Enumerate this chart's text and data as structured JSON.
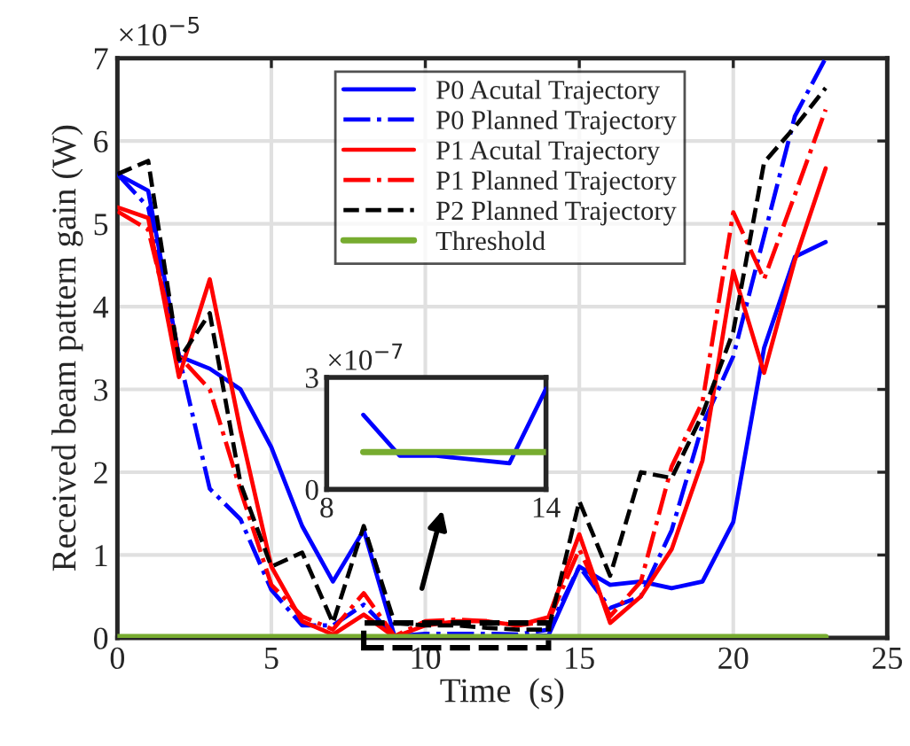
{
  "chart_data": [
    {
      "type": "line",
      "xlabel": "Time  (s)",
      "ylabel": "Received beam pattern gain (W)",
      "x": [
        0,
        1,
        2,
        3,
        4,
        5,
        6,
        7,
        8,
        9,
        10,
        11,
        12,
        13,
        14,
        15,
        16,
        17,
        18,
        19,
        20,
        21,
        22,
        23
      ],
      "series": [
        {
          "name": "P0 Acutal Trajectory",
          "color": "#0000ff",
          "line_style": "solid",
          "values": [
            5.6,
            5.4,
            3.4,
            3.25,
            3.0,
            2.3,
            1.35,
            0.68,
            1.3,
            0.02,
            0.01,
            0.01,
            0.01,
            0.01,
            0.03,
            0.86,
            0.64,
            0.68,
            0.6,
            0.68,
            1.4,
            3.5,
            4.6,
            4.78
          ]
        },
        {
          "name": "P0 Planned Trajectory",
          "color": "#0000ff",
          "line_style": "dashdot",
          "values": [
            5.6,
            5.2,
            3.4,
            1.8,
            1.43,
            0.58,
            0.15,
            0.15,
            0.4,
            0.02,
            0.05,
            0.05,
            0.05,
            0.04,
            0.1,
            0.86,
            0.36,
            0.5,
            1.3,
            2.57,
            3.4,
            4.85,
            6.3,
            7.0
          ]
        },
        {
          "name": "P1 Acutal Trajectory",
          "color": "#ff0000",
          "line_style": "solid",
          "values": [
            5.2,
            5.07,
            3.15,
            4.33,
            2.5,
            0.86,
            0.2,
            0.04,
            0.28,
            0.01,
            0.15,
            0.2,
            0.2,
            0.15,
            0.25,
            1.25,
            0.18,
            0.5,
            1.07,
            2.14,
            4.43,
            3.2,
            4.56,
            5.67
          ]
        },
        {
          "name": "P1 Planned Trajectory",
          "color": "#ff0000",
          "line_style": "dashdot",
          "values": [
            5.15,
            4.93,
            3.4,
            3.0,
            1.78,
            0.64,
            0.26,
            0.1,
            0.54,
            0.02,
            0.2,
            0.22,
            0.2,
            0.15,
            0.2,
            1.07,
            0.26,
            0.68,
            2.07,
            2.85,
            5.14,
            4.33,
            5.35,
            6.38
          ]
        },
        {
          "name": "P2 Planned Trajectory",
          "color": "#000000",
          "line_style": "dashed",
          "values": [
            5.6,
            5.76,
            3.36,
            3.92,
            1.86,
            0.86,
            1.03,
            0.18,
            1.35,
            0.18,
            0.15,
            0.15,
            0.12,
            0.1,
            0.1,
            1.65,
            0.75,
            2.0,
            1.93,
            2.7,
            3.7,
            5.74,
            6.17,
            6.64
          ]
        },
        {
          "name": "Threshold",
          "color": "#77ac30",
          "line_style": "solid",
          "values": [
            0.01,
            0.01,
            0.01,
            0.01,
            0.01,
            0.01,
            0.01,
            0.01,
            0.01,
            0.01,
            0.01,
            0.01,
            0.01,
            0.01,
            0.01,
            0.01,
            0.01,
            0.01,
            0.01,
            0.01,
            0.01,
            0.01,
            0.01,
            0.01
          ]
        }
      ],
      "xlim": [
        0,
        25
      ],
      "xticks": [
        0,
        5,
        10,
        15,
        20,
        25
      ],
      "ylim": [
        0,
        7
      ],
      "yticks": [
        0,
        1,
        2,
        3,
        4,
        5,
        6,
        7
      ],
      "grid": true,
      "legend": "top",
      "marker": "none",
      "annotations": [
        "×10$^{−5}$"
      ]
    },
    {
      "type": "line",
      "x": [
        9,
        10,
        11,
        12,
        13,
        14
      ],
      "series": [
        {
          "color": "#0000ff",
          "line_style": "solid",
          "values": [
            2.0,
            0.9,
            0.9,
            0.8,
            0.7,
            2.7
          ]
        },
        {
          "color": "#77ac30",
          "line_style": "solid",
          "values": [
            1.0,
            1.0,
            1.0,
            1.0,
            1.0,
            1.0
          ]
        }
      ],
      "xlim": [
        8,
        14
      ],
      "xticks": [
        8,
        14
      ],
      "ylim": [
        0,
        3
      ],
      "yticks": [
        0,
        3
      ],
      "marker": "none",
      "annotations": [
        "×10$^{−7}$"
      ]
    }
  ]
}
